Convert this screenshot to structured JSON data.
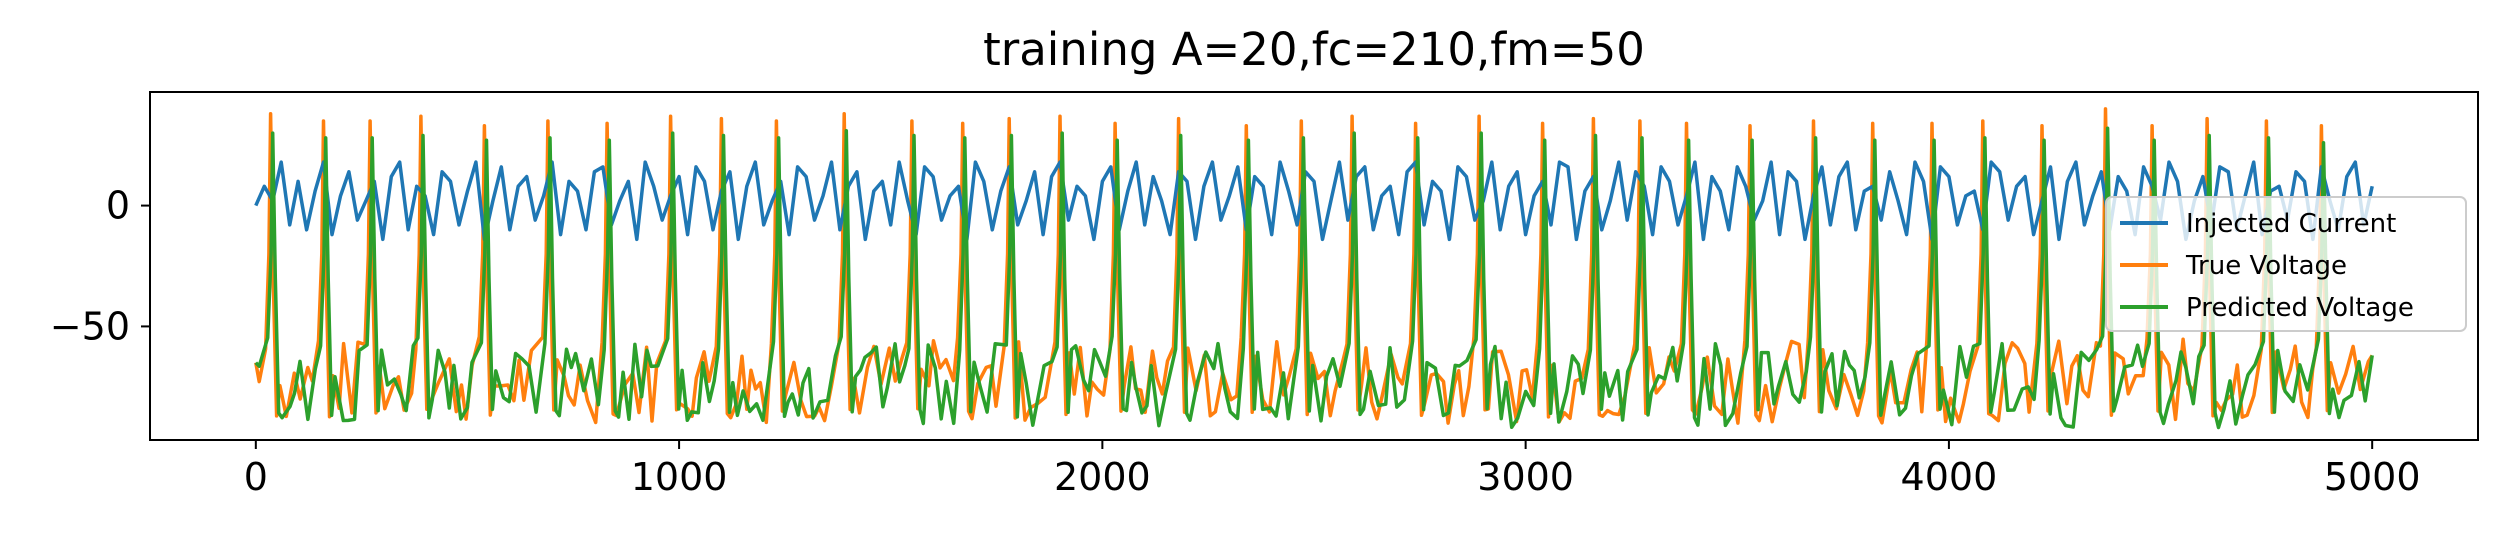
{
  "chart_data": {
    "type": "line",
    "title": "training A=20,fc=210,fm=50",
    "xlabel": "",
    "ylabel": "",
    "xlim": [
      -250,
      5250
    ],
    "ylim": [
      -97,
      47
    ],
    "xticks": [
      0,
      1000,
      2000,
      3000,
      4000,
      5000
    ],
    "xtick_labels": [
      "0",
      "1000",
      "2000",
      "3000",
      "4000",
      "5000"
    ],
    "yticks": [
      0,
      -50
    ],
    "ytick_labels": [
      "0",
      "−50"
    ],
    "legend_placement": "right",
    "grid": false,
    "colors": {
      "injected": "#1f77b4",
      "true": "#ff7f0e",
      "predicted": "#2ca02c"
    },
    "series": [
      {
        "name": "Injected Current",
        "color": "#1f77b4",
        "description_values": "oscillating between about -20 and 20 around 0",
        "x": [
          0,
          20,
          40,
          60,
          80,
          100,
          120,
          140,
          160,
          180,
          200,
          220,
          240,
          260,
          280,
          300,
          320,
          340,
          360,
          380,
          400,
          420,
          440,
          460,
          480,
          500,
          520,
          540,
          560,
          580,
          600,
          620,
          640,
          660,
          680,
          700,
          720,
          740,
          760,
          780,
          800,
          820,
          840,
          860,
          880,
          900,
          920,
          940,
          960,
          980,
          1000,
          1020,
          1040,
          1060,
          1080,
          1100,
          1120,
          1140,
          1160,
          1180,
          1200,
          1220,
          1240,
          1260,
          1280,
          1300,
          1320,
          1340,
          1360,
          1380,
          1400,
          1420,
          1440,
          1460,
          1480,
          1500,
          1520,
          1540,
          1560,
          1580,
          1600,
          1620,
          1640,
          1660,
          1680,
          1700,
          1720,
          1740,
          1760,
          1780,
          1800,
          1820,
          1840,
          1860,
          1880,
          1900,
          1920,
          1940,
          1960,
          1980,
          2000,
          2020,
          2040,
          2060,
          2080,
          2100,
          2120,
          2140,
          2160,
          2180,
          2200,
          2220,
          2240,
          2260,
          2280,
          2300,
          2320,
          2340,
          2360,
          2380,
          2400,
          2420,
          2440,
          2460,
          2480,
          2500,
          2520,
          2540,
          2560,
          2580,
          2600,
          2620,
          2640,
          2660,
          2680,
          2700,
          2720,
          2740,
          2760,
          2780,
          2800,
          2820,
          2840,
          2860,
          2880,
          2900,
          2920,
          2940,
          2960,
          2980,
          3000,
          3020,
          3040,
          3060,
          3080,
          3100,
          3120,
          3140,
          3160,
          3180,
          3200,
          3220,
          3240,
          3260,
          3280,
          3300,
          3320,
          3340,
          3360,
          3380,
          3400,
          3420,
          3440,
          3460,
          3480,
          3500,
          3520,
          3540,
          3560,
          3580,
          3600,
          3620,
          3640,
          3660,
          3680,
          3700,
          3720,
          3740,
          3760,
          3780,
          3800,
          3820,
          3840,
          3860,
          3880,
          3900,
          3920,
          3940,
          3960,
          3980,
          4000,
          4020,
          4040,
          4060,
          4080,
          4100,
          4120,
          4140,
          4160,
          4180,
          4200,
          4220,
          4240,
          4260,
          4280,
          4300,
          4320,
          4340,
          4360,
          4380,
          4400,
          4420,
          4440,
          4460,
          4480,
          4500,
          4520,
          4540,
          4560,
          4580,
          4600,
          4620,
          4640,
          4660,
          4680,
          4700,
          4720,
          4740,
          4760,
          4780,
          4800,
          4820,
          4840,
          4860,
          4880,
          4900,
          4920,
          4940,
          4960,
          4980,
          5000
        ],
        "values": [
          0,
          8,
          2,
          18,
          -8,
          10,
          -10,
          6,
          18,
          -12,
          4,
          14,
          -6,
          2,
          10,
          -14,
          12,
          18,
          -10,
          8,
          4,
          -12,
          14,
          10,
          -8,
          6,
          18,
          -14,
          2,
          16,
          -10,
          8,
          12,
          -6,
          4,
          18,
          -12,
          10,
          6,
          -10,
          14,
          16,
          -8,
          2,
          10,
          -14,
          18,
          8,
          -6,
          4,
          12,
          -12,
          16,
          10,
          -10,
          6,
          14,
          -14,
          8,
          18,
          -8,
          2,
          10,
          -12,
          16,
          12,
          -6,
          4,
          18,
          -10,
          8,
          14,
          -14,
          6,
          10,
          -8,
          18,
          2,
          -12,
          16,
          12,
          -6,
          4,
          8,
          -14,
          18,
          10,
          -10,
          6,
          16,
          -8,
          2,
          14,
          -12,
          12,
          18,
          -6,
          8,
          4,
          -14,
          10,
          16,
          -10,
          6,
          18,
          -8,
          12,
          2,
          -12,
          14,
          10,
          -14,
          8,
          18,
          -6,
          4,
          16,
          -10,
          12,
          8,
          -12,
          18,
          6,
          -8,
          14,
          10,
          -14,
          2,
          18,
          -6,
          12,
          16,
          -10,
          4,
          8,
          -12,
          14,
          18,
          -8,
          10,
          6,
          -14,
          16,
          12,
          -6,
          2,
          18,
          -10,
          8,
          14,
          -12,
          4,
          10,
          -8,
          18,
          16,
          -14,
          6,
          12,
          -10,
          2,
          18,
          -6,
          14,
          8,
          -12,
          16,
          10,
          -8,
          4,
          18,
          -14,
          12,
          6,
          -10,
          16,
          8,
          -6,
          2,
          18,
          -12,
          14,
          10,
          -14,
          4,
          16,
          -8,
          12,
          18,
          -10,
          6,
          8,
          -6,
          14,
          2,
          -12,
          18,
          10,
          -14,
          16,
          12,
          -8,
          4,
          6,
          -10,
          18,
          14,
          -6,
          8,
          12,
          -12,
          2,
          16,
          -14,
          10,
          18,
          -8,
          4,
          14,
          -10,
          12,
          6,
          -12,
          16,
          8,
          -6,
          18,
          10,
          -14,
          2,
          12,
          -8,
          16,
          14,
          -10,
          4,
          18,
          -12,
          6,
          8,
          -6,
          14,
          10,
          -14,
          16,
          2,
          -10,
          12,
          18,
          -8,
          8
        ]
      },
      {
        "name": "True Voltage",
        "color": "#ff7f0e",
        "spike_x": [
          35,
          160,
          270,
          390,
          540,
          690,
          830,
          980,
          1100,
          1230,
          1390,
          1550,
          1670,
          1780,
          1900,
          2030,
          2180,
          2340,
          2470,
          2590,
          2740,
          2890,
          3040,
          3160,
          3270,
          3380,
          3530,
          3680,
          3820,
          3960,
          4080,
          4220,
          4370,
          4480,
          4610,
          4750,
          4880
        ],
        "spike_peak": [
          38,
          35,
          35,
          37,
          33,
          35,
          34,
          37,
          36,
          35,
          38,
          35,
          34,
          36,
          37,
          34,
          36,
          33,
          35,
          37,
          34,
          37,
          34,
          36,
          35,
          34,
          33,
          35,
          34,
          34,
          35,
          33,
          40,
          33,
          36,
          35,
          33
        ],
        "baseline_range": [
          -90,
          -55
        ]
      },
      {
        "name": "Predicted Voltage",
        "color": "#2ca02c",
        "spike_x": [
          40,
          165,
          275,
          395,
          545,
          695,
          835,
          985,
          1105,
          1235,
          1395,
          1555,
          1675,
          1785,
          1905,
          2035,
          2185,
          2345,
          2475,
          2595,
          2745,
          2895,
          3045,
          3165,
          3275,
          3385,
          3535,
          3685,
          3825,
          3965,
          4085,
          4225,
          4375,
          4485,
          4615,
          4755,
          4885
        ],
        "spike_peak": [
          30,
          28,
          28,
          29,
          27,
          28,
          27,
          30,
          29,
          28,
          31,
          29,
          28,
          29,
          30,
          27,
          29,
          27,
          28,
          30,
          28,
          30,
          27,
          29,
          28,
          27,
          27,
          28,
          27,
          27,
          28,
          27,
          32,
          27,
          29,
          28,
          26
        ],
        "baseline_range": [
          -92,
          -57
        ]
      }
    ]
  },
  "legend": {
    "items": [
      {
        "label": "Injected Current",
        "color": "#1f77b4"
      },
      {
        "label": "True Voltage",
        "color": "#ff7f0e"
      },
      {
        "label": "Predicted Voltage",
        "color": "#2ca02c"
      }
    ]
  }
}
